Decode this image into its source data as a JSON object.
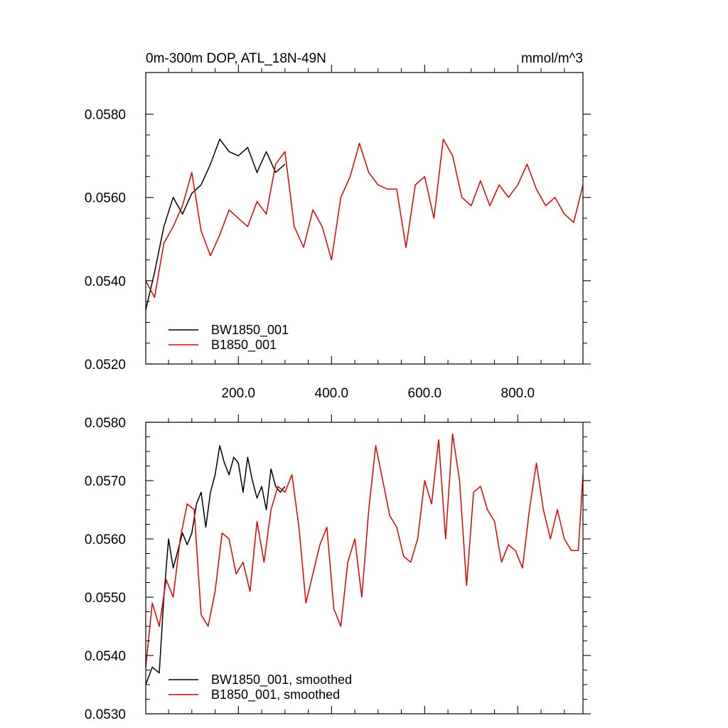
{
  "chart_data": [
    {
      "type": "line",
      "title": "0m-300m DOP, ATL_18N-49N",
      "units": "mmol/m^3",
      "xlim": [
        1,
        940
      ],
      "ylim": [
        0.052,
        0.059
      ],
      "xticks": [
        200,
        400,
        600,
        800
      ],
      "xtick_labels": [
        "200.0",
        "400.0",
        "600.0",
        "800.0"
      ],
      "yticks": [
        0.052,
        0.054,
        0.056,
        0.058
      ],
      "ytick_labels": [
        "0.0520",
        "0.0540",
        "0.0560",
        "0.0580"
      ],
      "legend_position": "lower-left",
      "series": [
        {
          "name": "BW1850_001",
          "color": "#000000",
          "x": [
            1,
            20,
            40,
            60,
            80,
            100,
            120,
            140,
            160,
            180,
            200,
            220,
            240,
            260,
            280,
            300
          ],
          "values": [
            0.0533,
            0.0542,
            0.0553,
            0.056,
            0.0556,
            0.0561,
            0.0563,
            0.0568,
            0.0574,
            0.0571,
            0.057,
            0.0572,
            0.0566,
            0.0571,
            0.0566,
            0.0568
          ]
        },
        {
          "name": "B1850_001",
          "color": "#e00000",
          "x": [
            1,
            20,
            40,
            60,
            80,
            100,
            120,
            140,
            160,
            180,
            200,
            220,
            240,
            260,
            280,
            300,
            320,
            340,
            360,
            380,
            400,
            420,
            440,
            460,
            480,
            500,
            520,
            540,
            560,
            580,
            600,
            620,
            640,
            660,
            680,
            700,
            720,
            740,
            760,
            780,
            800,
            820,
            840,
            860,
            880,
            900,
            920,
            940
          ],
          "values": [
            0.054,
            0.0536,
            0.0549,
            0.0553,
            0.0558,
            0.0566,
            0.0552,
            0.0546,
            0.0551,
            0.0557,
            0.0555,
            0.0553,
            0.0559,
            0.0556,
            0.0568,
            0.0571,
            0.0553,
            0.0548,
            0.0557,
            0.0553,
            0.0545,
            0.056,
            0.0565,
            0.0573,
            0.0566,
            0.0563,
            0.0562,
            0.0562,
            0.0548,
            0.0563,
            0.0565,
            0.0555,
            0.0574,
            0.057,
            0.056,
            0.0558,
            0.0564,
            0.0558,
            0.0563,
            0.056,
            0.0563,
            0.0568,
            0.0562,
            0.0558,
            0.056,
            0.0556,
            0.0554,
            0.0563
          ]
        }
      ]
    },
    {
      "type": "line",
      "xlim": [
        1,
        940
      ],
      "ylim": [
        0.053,
        0.058
      ],
      "xticks": [
        200,
        400,
        600,
        800
      ],
      "yticks": [
        0.053,
        0.054,
        0.055,
        0.056,
        0.057,
        0.058
      ],
      "ytick_labels": [
        "0.0530",
        "0.0540",
        "0.0550",
        "0.0560",
        "0.0570",
        "0.0580"
      ],
      "legend_position": "lower-left",
      "series": [
        {
          "name": "BW1850_001, smoothed",
          "color": "#000000",
          "x": [
            1,
            15,
            30,
            40,
            50,
            60,
            70,
            80,
            90,
            100,
            110,
            120,
            130,
            140,
            150,
            160,
            170,
            180,
            190,
            200,
            210,
            220,
            230,
            240,
            250,
            260,
            270,
            280,
            290,
            300
          ],
          "values": [
            0.0535,
            0.0538,
            0.0537,
            0.055,
            0.056,
            0.0555,
            0.0558,
            0.0561,
            0.0559,
            0.0561,
            0.0566,
            0.0568,
            0.0562,
            0.0568,
            0.0571,
            0.0576,
            0.0573,
            0.0571,
            0.0574,
            0.0573,
            0.0568,
            0.0574,
            0.057,
            0.0567,
            0.0569,
            0.0565,
            0.0572,
            0.0569,
            0.0568,
            0.0569
          ]
        },
        {
          "name": "B1850_001, smoothed",
          "color": "#e00000",
          "x": [
            1,
            15,
            30,
            45,
            60,
            75,
            90,
            105,
            120,
            135,
            150,
            165,
            180,
            195,
            210,
            225,
            240,
            255,
            270,
            285,
            300,
            315,
            330,
            345,
            360,
            375,
            390,
            405,
            420,
            435,
            450,
            465,
            480,
            495,
            510,
            525,
            540,
            555,
            570,
            585,
            600,
            615,
            630,
            645,
            660,
            675,
            690,
            705,
            720,
            735,
            750,
            765,
            780,
            795,
            810,
            825,
            840,
            855,
            870,
            885,
            900,
            915,
            930,
            940
          ],
          "values": [
            0.0538,
            0.0549,
            0.0545,
            0.0553,
            0.055,
            0.056,
            0.0566,
            0.0565,
            0.0547,
            0.0545,
            0.0551,
            0.0561,
            0.056,
            0.0554,
            0.0556,
            0.0551,
            0.0563,
            0.0556,
            0.0565,
            0.0569,
            0.0568,
            0.0571,
            0.0562,
            0.0549,
            0.0554,
            0.0559,
            0.0562,
            0.0548,
            0.0545,
            0.0556,
            0.056,
            0.055,
            0.0565,
            0.0576,
            0.057,
            0.0564,
            0.0562,
            0.0557,
            0.0556,
            0.056,
            0.057,
            0.0566,
            0.0577,
            0.056,
            0.0578,
            0.057,
            0.0552,
            0.0568,
            0.0569,
            0.0565,
            0.0563,
            0.0556,
            0.0559,
            0.0558,
            0.0555,
            0.0565,
            0.0573,
            0.0565,
            0.056,
            0.0565,
            0.056,
            0.0558,
            0.0558,
            0.0571
          ]
        }
      ]
    }
  ]
}
